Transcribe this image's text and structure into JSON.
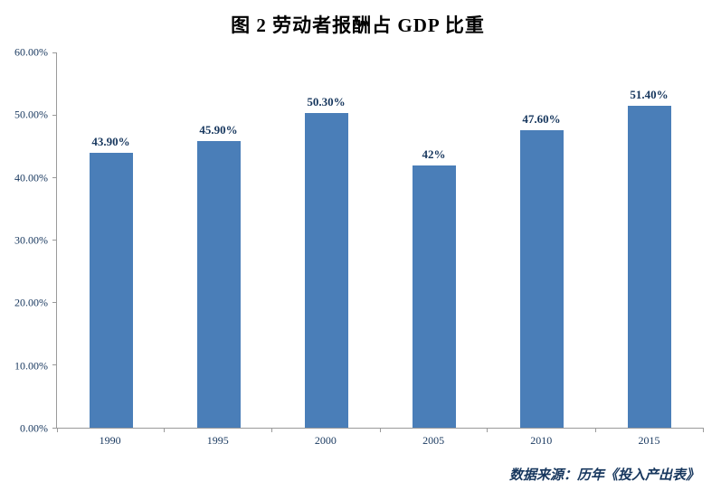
{
  "title": "图 2  劳动者报酬占 GDP 比重",
  "source_note": "数据来源：历年《投入产出表》",
  "colors": {
    "bar": "#4a7eb8",
    "text": "#17375e",
    "axis": "#9a9a9a"
  },
  "chart_data": {
    "type": "bar",
    "title": "图 2  劳动者报酬占 GDP 比重",
    "categories": [
      "1990",
      "1995",
      "2000",
      "2005",
      "2010",
      "2015"
    ],
    "values": [
      43.9,
      45.9,
      50.3,
      42.0,
      47.6,
      51.4
    ],
    "value_labels": [
      "43.90%",
      "45.90%",
      "50.30%",
      "42%",
      "47.60%",
      "51.40%"
    ],
    "xlabel": "",
    "ylabel": "",
    "ylim": [
      0,
      60
    ],
    "yticks": [
      "0.00%",
      "10.00%",
      "20.00%",
      "30.00%",
      "40.00%",
      "50.00%",
      "60.00%"
    ],
    "grid": false,
    "legend": "none",
    "source": "数据来源：历年《投入产出表》"
  }
}
